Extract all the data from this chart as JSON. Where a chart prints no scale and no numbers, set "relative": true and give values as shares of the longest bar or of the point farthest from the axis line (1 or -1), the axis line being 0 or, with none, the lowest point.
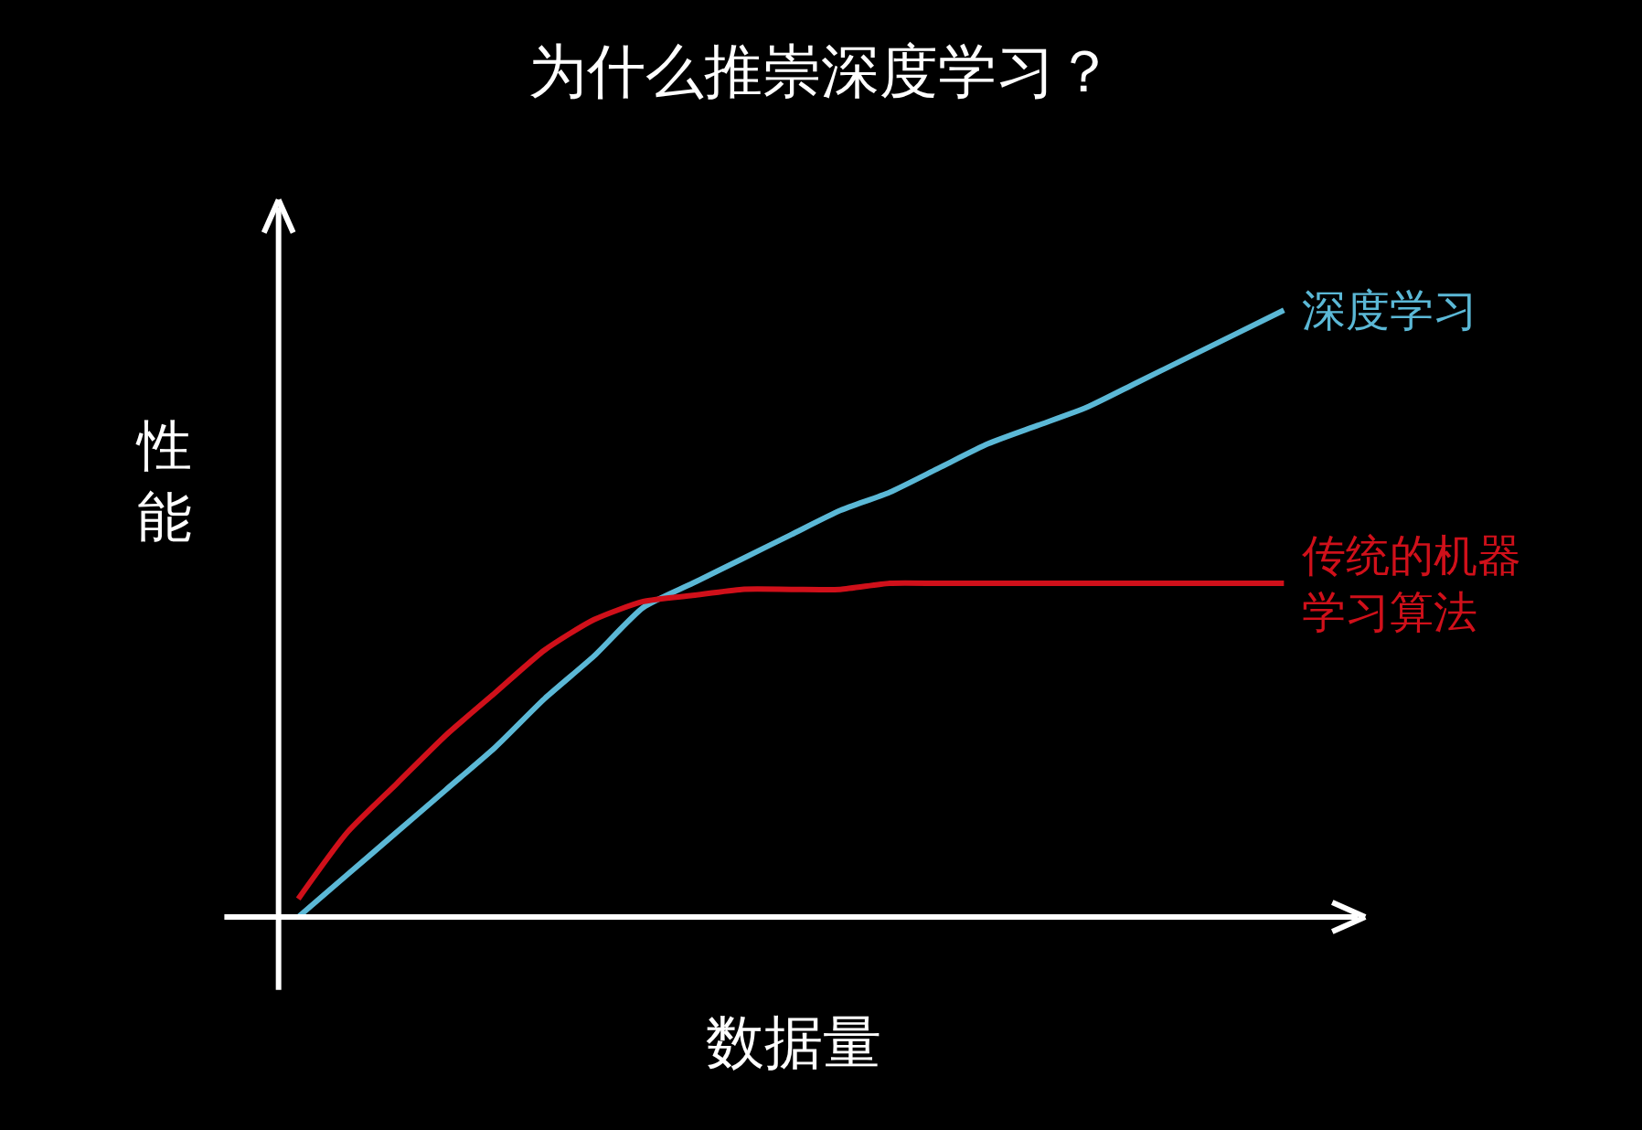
{
  "chart_data": {
    "type": "line",
    "title": "为什么推崇深度学习？",
    "xlabel": "数据量",
    "ylabel": "性能",
    "relative": true,
    "categories": [
      null,
      null,
      null,
      null,
      null,
      null,
      null,
      null,
      null,
      null,
      null,
      null,
      null,
      null,
      null,
      null,
      null,
      null,
      null,
      null,
      null
    ],
    "series": [
      {
        "name": "深度学习",
        "color": "#5bb8d6",
        "values": [
          0.0,
          0.07,
          0.14,
          0.21,
          0.28,
          0.36,
          0.43,
          0.51,
          0.55,
          0.59,
          0.63,
          0.67,
          0.7,
          0.74,
          0.78,
          0.81,
          0.84,
          0.88,
          0.92,
          0.96,
          1.0
        ]
      },
      {
        "name": "传统的机器学习算法",
        "color": "#d0101a",
        "values": [
          0.03,
          0.14,
          0.22,
          0.3,
          0.37,
          0.44,
          0.49,
          0.52,
          0.53,
          0.54,
          0.54,
          0.54,
          0.55,
          0.55,
          0.55,
          0.55,
          0.55,
          0.55,
          0.55,
          0.55,
          0.55
        ]
      }
    ]
  }
}
